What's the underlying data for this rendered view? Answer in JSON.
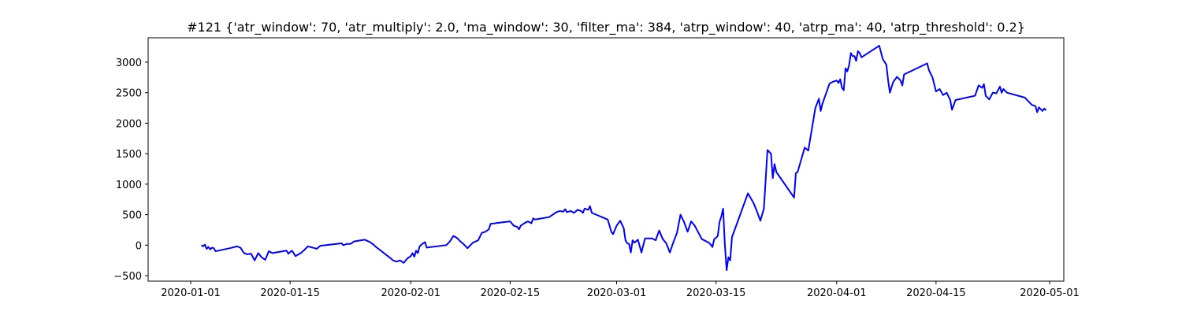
{
  "chart_data": {
    "type": "line",
    "title": "#121 {'atr_window': 70, 'atr_multiply': 2.0, 'ma_window': 30, 'filter_ma': 384, 'atrp_window': 40, 'atrp_ma': 40, 'atrp_threshold': 0.2}",
    "xlabel": "",
    "ylabel": "",
    "xlim": [
      "2019-12-26",
      "2020-05-03"
    ],
    "ylim": [
      -590,
      3400
    ],
    "grid": false,
    "x_ticks": [
      "2020-01-01",
      "2020-01-15",
      "2020-02-01",
      "2020-02-15",
      "2020-03-01",
      "2020-03-15",
      "2020-04-01",
      "2020-04-15",
      "2020-05-01"
    ],
    "y_ticks": [
      -500,
      0,
      500,
      1000,
      1500,
      2000,
      2500,
      3000
    ],
    "series": [
      {
        "color": "#0000ff",
        "points": [
          [
            "2020-01-02T12:00",
            0
          ],
          [
            "2020-01-02T18:00",
            -20
          ],
          [
            "2020-01-03T00:00",
            10
          ],
          [
            "2020-01-03T06:00",
            -60
          ],
          [
            "2020-01-03T12:00",
            -30
          ],
          [
            "2020-01-03T18:00",
            -70
          ],
          [
            "2020-01-04T00:00",
            -40
          ],
          [
            "2020-01-04T06:00",
            -50
          ],
          [
            "2020-01-04T12:00",
            -100
          ],
          [
            "2020-01-06T12:00",
            -50
          ],
          [
            "2020-01-07T12:00",
            -20
          ],
          [
            "2020-01-08T00:00",
            -40
          ],
          [
            "2020-01-08T12:00",
            -130
          ],
          [
            "2020-01-09T00:00",
            -150
          ],
          [
            "2020-01-09T12:00",
            -140
          ],
          [
            "2020-01-10T00:00",
            -250
          ],
          [
            "2020-01-10T12:00",
            -130
          ],
          [
            "2020-01-11T00:00",
            -200
          ],
          [
            "2020-01-11T12:00",
            -240
          ],
          [
            "2020-01-12T00:00",
            -100
          ],
          [
            "2020-01-12T12:00",
            -130
          ],
          [
            "2020-01-14T12:00",
            -90
          ],
          [
            "2020-01-14T18:00",
            -140
          ],
          [
            "2020-01-15T06:00",
            -90
          ],
          [
            "2020-01-15T12:00",
            -130
          ],
          [
            "2020-01-15T18:00",
            -180
          ],
          [
            "2020-01-16T12:00",
            -130
          ],
          [
            "2020-01-17T00:00",
            -80
          ],
          [
            "2020-01-17T12:00",
            -20
          ],
          [
            "2020-01-18T12:00",
            -50
          ],
          [
            "2020-01-18T18:00",
            -60
          ],
          [
            "2020-01-19T06:00",
            -10
          ],
          [
            "2020-01-22T06:00",
            30
          ],
          [
            "2020-01-22T12:00",
            0
          ],
          [
            "2020-01-23T00:00",
            20
          ],
          [
            "2020-01-23T12:00",
            20
          ],
          [
            "2020-01-24T00:00",
            60
          ],
          [
            "2020-01-25T12:00",
            90
          ],
          [
            "2020-01-26T06:00",
            50
          ],
          [
            "2020-01-26T18:00",
            10
          ],
          [
            "2020-01-27T00:00",
            -20
          ],
          [
            "2020-01-29T00:00",
            -200
          ],
          [
            "2020-01-29T12:00",
            -250
          ],
          [
            "2020-01-30T00:00",
            -270
          ],
          [
            "2020-01-30T12:00",
            -250
          ],
          [
            "2020-01-31T00:00",
            -290
          ],
          [
            "2020-01-31T12:00",
            -220
          ],
          [
            "2020-02-01T00:00",
            -180
          ],
          [
            "2020-02-01T06:00",
            -130
          ],
          [
            "2020-02-01T12:00",
            -190
          ],
          [
            "2020-02-01T18:00",
            -90
          ],
          [
            "2020-02-02T00:00",
            -130
          ],
          [
            "2020-02-02T06:00",
            -20
          ],
          [
            "2020-02-02T12:00",
            10
          ],
          [
            "2020-02-02T18:00",
            30
          ],
          [
            "2020-02-03T00:00",
            50
          ],
          [
            "2020-02-03T06:00",
            -40
          ],
          [
            "2020-02-06T00:00",
            0
          ],
          [
            "2020-02-06T12:00",
            60
          ],
          [
            "2020-02-07T00:00",
            150
          ],
          [
            "2020-02-07T12:00",
            120
          ],
          [
            "2020-02-08T00:00",
            60
          ],
          [
            "2020-02-08T12:00",
            10
          ],
          [
            "2020-02-09T00:00",
            -50
          ],
          [
            "2020-02-09T18:00",
            40
          ],
          [
            "2020-02-10T12:00",
            80
          ],
          [
            "2020-02-11T00:00",
            200
          ],
          [
            "2020-02-11T12:00",
            220
          ],
          [
            "2020-02-12T00:00",
            260
          ],
          [
            "2020-02-12T06:00",
            350
          ],
          [
            "2020-02-15T00:00",
            390
          ],
          [
            "2020-02-15T12:00",
            320
          ],
          [
            "2020-02-16T00:00",
            300
          ],
          [
            "2020-02-16T06:00",
            260
          ],
          [
            "2020-02-16T12:00",
            320
          ],
          [
            "2020-02-17T00:00",
            360
          ],
          [
            "2020-02-17T12:00",
            390
          ],
          [
            "2020-02-18T00:00",
            360
          ],
          [
            "2020-02-18T06:00",
            440
          ],
          [
            "2020-02-18T12:00",
            420
          ],
          [
            "2020-02-20T12:00",
            460
          ],
          [
            "2020-02-21T12:00",
            540
          ],
          [
            "2020-02-22T00:00",
            560
          ],
          [
            "2020-02-22T12:00",
            550
          ],
          [
            "2020-02-22T18:00",
            590
          ],
          [
            "2020-02-23T00:00",
            540
          ],
          [
            "2020-02-23T12:00",
            560
          ],
          [
            "2020-02-24T00:00",
            530
          ],
          [
            "2020-02-24T12:00",
            580
          ],
          [
            "2020-02-25T00:00",
            560
          ],
          [
            "2020-02-25T06:00",
            530
          ],
          [
            "2020-02-25T12:00",
            600
          ],
          [
            "2020-02-26T00:00",
            580
          ],
          [
            "2020-02-26T06:00",
            640
          ],
          [
            "2020-02-26T12:00",
            530
          ],
          [
            "2020-02-28T18:00",
            420
          ],
          [
            "2020-02-29T06:00",
            220
          ],
          [
            "2020-02-29T12:00",
            180
          ],
          [
            "2020-03-01T00:00",
            320
          ],
          [
            "2020-03-01T12:00",
            400
          ],
          [
            "2020-03-02T00:00",
            280
          ],
          [
            "2020-03-02T06:00",
            80
          ],
          [
            "2020-03-02T12:00",
            30
          ],
          [
            "2020-03-02T18:00",
            20
          ],
          [
            "2020-03-03T00:00",
            -120
          ],
          [
            "2020-03-03T06:00",
            80
          ],
          [
            "2020-03-03T12:00",
            40
          ],
          [
            "2020-03-04T00:00",
            90
          ],
          [
            "2020-03-04T12:00",
            -120
          ],
          [
            "2020-03-05T00:00",
            110
          ],
          [
            "2020-03-06T00:00",
            110
          ],
          [
            "2020-03-06T12:00",
            80
          ],
          [
            "2020-03-07T00:00",
            240
          ],
          [
            "2020-03-07T12:00",
            100
          ],
          [
            "2020-03-08T00:00",
            30
          ],
          [
            "2020-03-08T12:00",
            -120
          ],
          [
            "2020-03-09T00:00",
            50
          ],
          [
            "2020-03-09T12:00",
            200
          ],
          [
            "2020-03-10T00:00",
            500
          ],
          [
            "2020-03-10T12:00",
            380
          ],
          [
            "2020-03-11T00:00",
            220
          ],
          [
            "2020-03-11T12:00",
            390
          ],
          [
            "2020-03-12T00:00",
            320
          ],
          [
            "2020-03-13T00:00",
            100
          ],
          [
            "2020-03-14T00:00",
            40
          ],
          [
            "2020-03-14T06:00",
            10
          ],
          [
            "2020-03-14T12:00",
            -30
          ],
          [
            "2020-03-14T18:00",
            100
          ],
          [
            "2020-03-15T00:00",
            120
          ],
          [
            "2020-03-15T06:00",
            150
          ],
          [
            "2020-03-15T12:00",
            380
          ],
          [
            "2020-03-15T18:00",
            470
          ],
          [
            "2020-03-16T00:00",
            600
          ],
          [
            "2020-03-16T06:00",
            10
          ],
          [
            "2020-03-16T12:00",
            -410
          ],
          [
            "2020-03-16T18:00",
            -200
          ],
          [
            "2020-03-17T00:00",
            -250
          ],
          [
            "2020-03-17T06:00",
            130
          ],
          [
            "2020-03-19T12:00",
            850
          ],
          [
            "2020-03-20T06:00",
            700
          ],
          [
            "2020-03-20T18:00",
            560
          ],
          [
            "2020-03-21T06:00",
            400
          ],
          [
            "2020-03-21T18:00",
            600
          ],
          [
            "2020-03-22T06:00",
            1560
          ],
          [
            "2020-03-22T18:00",
            1500
          ],
          [
            "2020-03-23T00:00",
            1100
          ],
          [
            "2020-03-23T06:00",
            1330
          ],
          [
            "2020-03-23T12:00",
            1200
          ],
          [
            "2020-03-26T00:00",
            780
          ],
          [
            "2020-03-26T06:00",
            1180
          ],
          [
            "2020-03-26T12:00",
            1200
          ],
          [
            "2020-03-27T12:00",
            1600
          ],
          [
            "2020-03-28T00:00",
            1550
          ],
          [
            "2020-03-28T12:00",
            1900
          ],
          [
            "2020-03-29T00:00",
            2250
          ],
          [
            "2020-03-29T12:00",
            2400
          ],
          [
            "2020-03-29T18:00",
            2200
          ],
          [
            "2020-03-30T00:00",
            2320
          ],
          [
            "2020-03-31T00:00",
            2650
          ],
          [
            "2020-03-31T12:00",
            2680
          ],
          [
            "2020-04-01T00:00",
            2700
          ],
          [
            "2020-04-01T06:00",
            2660
          ],
          [
            "2020-04-01T12:00",
            2720
          ],
          [
            "2020-04-01T18:00",
            2580
          ],
          [
            "2020-04-02T00:00",
            2540
          ],
          [
            "2020-04-02T06:00",
            2900
          ],
          [
            "2020-04-02T12:00",
            2850
          ],
          [
            "2020-04-02T18:00",
            2950
          ],
          [
            "2020-04-03T00:00",
            3150
          ],
          [
            "2020-04-03T06:00",
            3100
          ],
          [
            "2020-04-03T12:00",
            3100
          ],
          [
            "2020-04-03T18:00",
            3020
          ],
          [
            "2020-04-04T00:00",
            3180
          ],
          [
            "2020-04-04T06:00",
            3150
          ],
          [
            "2020-04-04T12:00",
            3080
          ],
          [
            "2020-04-07T00:00",
            3270
          ],
          [
            "2020-04-07T12:00",
            3050
          ],
          [
            "2020-04-08T00:00",
            2960
          ],
          [
            "2020-04-08T06:00",
            2700
          ],
          [
            "2020-04-08T12:00",
            2500
          ],
          [
            "2020-04-08T18:00",
            2600
          ],
          [
            "2020-04-09T00:00",
            2680
          ],
          [
            "2020-04-09T12:00",
            2760
          ],
          [
            "2020-04-10T00:00",
            2700
          ],
          [
            "2020-04-10T06:00",
            2620
          ],
          [
            "2020-04-10T12:00",
            2800
          ],
          [
            "2020-04-13T18:00",
            2980
          ],
          [
            "2020-04-14T00:00",
            2870
          ],
          [
            "2020-04-14T12:00",
            2750
          ],
          [
            "2020-04-15T00:00",
            2520
          ],
          [
            "2020-04-15T12:00",
            2560
          ],
          [
            "2020-04-16T00:00",
            2460
          ],
          [
            "2020-04-16T12:00",
            2500
          ],
          [
            "2020-04-17T00:00",
            2380
          ],
          [
            "2020-04-17T06:00",
            2220
          ],
          [
            "2020-04-17T18:00",
            2380
          ],
          [
            "2020-04-20T12:00",
            2450
          ],
          [
            "2020-04-21T00:00",
            2620
          ],
          [
            "2020-04-21T06:00",
            2600
          ],
          [
            "2020-04-21T12:00",
            2580
          ],
          [
            "2020-04-21T18:00",
            2640
          ],
          [
            "2020-04-22T00:00",
            2450
          ],
          [
            "2020-04-22T12:00",
            2390
          ],
          [
            "2020-04-23T00:00",
            2500
          ],
          [
            "2020-04-23T12:00",
            2490
          ],
          [
            "2020-04-24T00:00",
            2600
          ],
          [
            "2020-04-24T06:00",
            2500
          ],
          [
            "2020-04-24T12:00",
            2560
          ],
          [
            "2020-04-25T00:00",
            2500
          ],
          [
            "2020-04-27T12:00",
            2420
          ],
          [
            "2020-04-28T12:00",
            2300
          ],
          [
            "2020-04-29T00:00",
            2280
          ],
          [
            "2020-04-29T06:00",
            2180
          ],
          [
            "2020-04-29T12:00",
            2260
          ],
          [
            "2020-04-30T00:00",
            2200
          ],
          [
            "2020-04-30T06:00",
            2240
          ],
          [
            "2020-04-30T12:00",
            2210
          ]
        ]
      }
    ]
  }
}
